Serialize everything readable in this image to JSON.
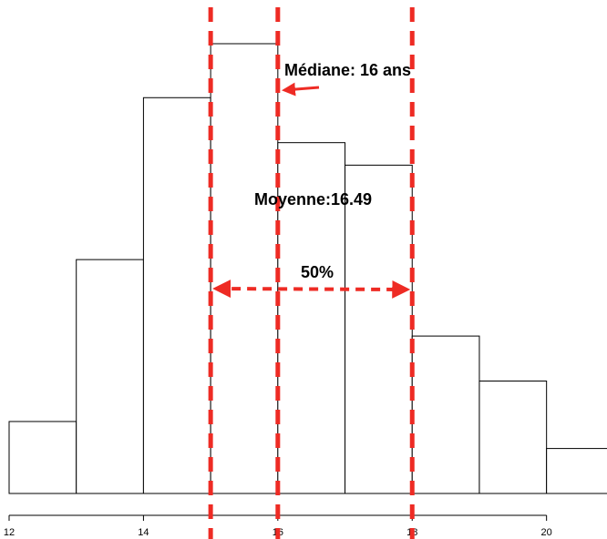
{
  "chart_data": {
    "type": "bar",
    "title": "",
    "xlabel": "",
    "ylabel": "",
    "x_ticks": [
      12,
      14,
      16,
      18,
      20
    ],
    "xlim": [
      12,
      20.9
    ],
    "ylim": [
      0,
      100
    ],
    "bins": [
      {
        "start": 12,
        "end": 13,
        "value": 16
      },
      {
        "start": 13,
        "end": 14,
        "value": 52
      },
      {
        "start": 14,
        "end": 15,
        "value": 88
      },
      {
        "start": 15,
        "end": 16,
        "value": 100
      },
      {
        "start": 16,
        "end": 17,
        "value": 78
      },
      {
        "start": 17,
        "end": 18,
        "value": 73
      },
      {
        "start": 18,
        "end": 19,
        "value": 35
      },
      {
        "start": 19,
        "end": 20,
        "value": 25
      },
      {
        "start": 20,
        "end": 21,
        "value": 10
      }
    ],
    "reference_lines": [
      15,
      16,
      18
    ],
    "annotations": {
      "median": "Médiane: 16 ans",
      "mean": "Moyenne:16.49",
      "iqr": "50%"
    },
    "colors": {
      "bar_fill": "#ffffff",
      "bar_stroke": "#000000",
      "marker": "#ee2b24"
    },
    "grid": false
  }
}
